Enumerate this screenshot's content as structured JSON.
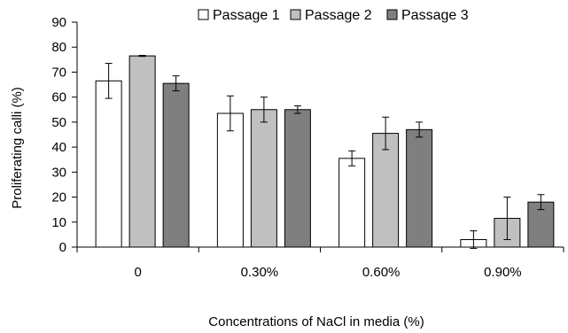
{
  "chart_data": {
    "type": "bar",
    "title": "",
    "xlabel": "Concentrations of NaCl in media (%)",
    "ylabel": "Proliferating calli (%)",
    "ylim": [
      0,
      90
    ],
    "yticks": [
      0,
      10,
      20,
      30,
      40,
      50,
      60,
      70,
      80,
      90
    ],
    "categories": [
      "0",
      "0.30%",
      "0.60%",
      "0.90%"
    ],
    "grid": false,
    "legend_position": "top",
    "series": [
      {
        "name": "Passage 1",
        "color": "#ffffff",
        "values": [
          66.5,
          53.5,
          35.5,
          3.0
        ],
        "errors": [
          7.0,
          7.0,
          3.0,
          3.5
        ]
      },
      {
        "name": "Passage 2",
        "color": "#c0c0c0",
        "values": [
          76.5,
          55.0,
          45.5,
          11.5
        ],
        "errors": [
          0.2,
          5.0,
          6.5,
          8.5
        ]
      },
      {
        "name": "Passage 3",
        "color": "#7f7f7f",
        "values": [
          65.5,
          55.0,
          47.0,
          18.0
        ],
        "errors": [
          3.0,
          1.5,
          3.0,
          3.0
        ]
      }
    ]
  }
}
